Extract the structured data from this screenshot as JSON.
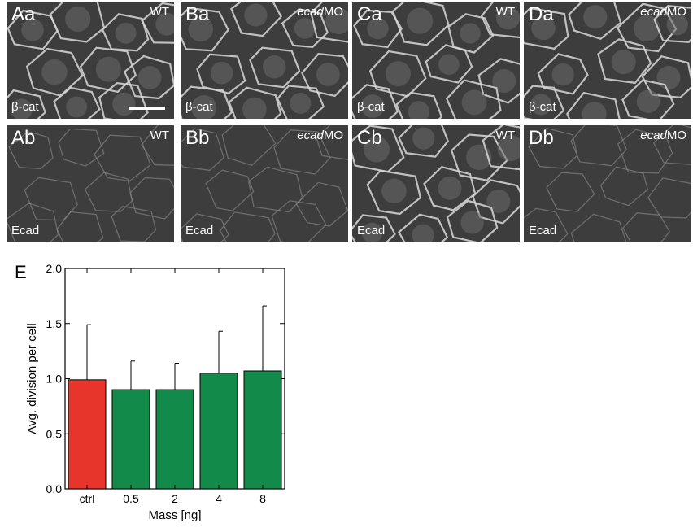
{
  "panels": [
    {
      "label": "Aa",
      "condition_prefix": "",
      "condition_suffix": "WT",
      "stain": "β-cat"
    },
    {
      "label": "Ba",
      "condition_prefix": "ecad",
      "condition_suffix": "MO",
      "stain": "β-cat"
    },
    {
      "label": "Ca",
      "condition_prefix": "",
      "condition_suffix": "WT",
      "stain": "β-cat"
    },
    {
      "label": "Da",
      "condition_prefix": "ecad",
      "condition_suffix": "MO",
      "stain": "β-cat"
    },
    {
      "label": "Ab",
      "condition_prefix": "",
      "condition_suffix": "WT",
      "stain": "Ecad"
    },
    {
      "label": "Bb",
      "condition_prefix": "ecad",
      "condition_suffix": "MO",
      "stain": "Ecad"
    },
    {
      "label": "Cb",
      "condition_prefix": "",
      "condition_suffix": "WT",
      "stain": "Ecad"
    },
    {
      "label": "Db",
      "condition_prefix": "ecad",
      "condition_suffix": "MO",
      "stain": "Ecad"
    }
  ],
  "panel_e_label": "E",
  "chart_data": {
    "type": "bar",
    "categories": [
      "ctrl",
      "0.5",
      "2",
      "4",
      "8"
    ],
    "values": [
      0.99,
      0.9,
      0.9,
      1.05,
      1.07
    ],
    "errors": [
      0.5,
      0.26,
      0.24,
      0.38,
      0.59
    ],
    "colors": [
      "#e8352b",
      "#128a49",
      "#128a49",
      "#128a49",
      "#128a49"
    ],
    "xlabel": "Mass [ng]",
    "ylabel": "Avg. division per cell",
    "ylim": [
      0,
      2.0
    ],
    "yticks": [
      0.0,
      0.5,
      1.0,
      1.5,
      2.0
    ],
    "ytick_labels": [
      "0.0",
      "0.5",
      "1.0",
      "1.5",
      "2.0"
    ],
    "grid": false
  }
}
